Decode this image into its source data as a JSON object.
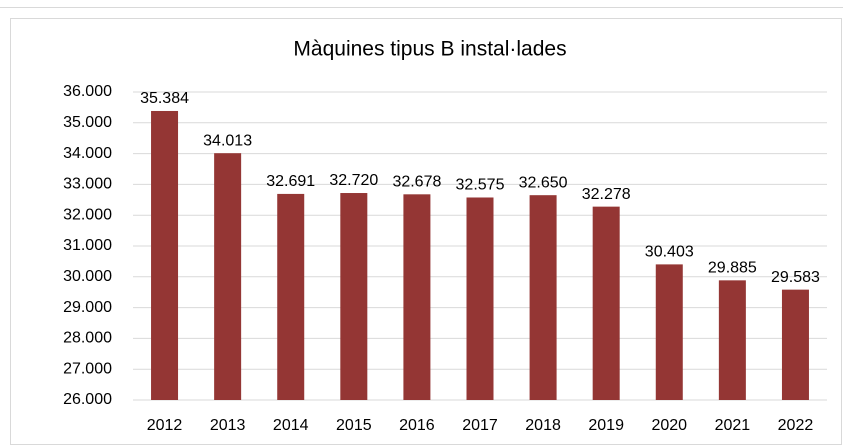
{
  "chart_data": {
    "type": "bar",
    "title": "Màquines tipus B instal·lades",
    "categories": [
      "2012",
      "2013",
      "2014",
      "2015",
      "2016",
      "2017",
      "2018",
      "2019",
      "2020",
      "2021",
      "2022"
    ],
    "values": [
      35384,
      34013,
      32691,
      32720,
      32678,
      32575,
      32650,
      32278,
      30403,
      29885,
      29583
    ],
    "value_labels": [
      "35.384",
      "34.013",
      "32.691",
      "32.720",
      "32.678",
      "32.575",
      "32.650",
      "32.278",
      "30.403",
      "29.885",
      "29.583"
    ],
    "color": "#943634",
    "ylim": [
      26000,
      36000
    ],
    "yticks": [
      {
        "value": 26000,
        "label": "26.000"
      },
      {
        "value": 27000,
        "label": "27.000"
      },
      {
        "value": 28000,
        "label": "28.000"
      },
      {
        "value": 29000,
        "label": "29.000"
      },
      {
        "value": 30000,
        "label": "30.000"
      },
      {
        "value": 31000,
        "label": "31.000"
      },
      {
        "value": 32000,
        "label": "32.000"
      },
      {
        "value": 33000,
        "label": "33.000"
      },
      {
        "value": 34000,
        "label": "34.000"
      },
      {
        "value": 35000,
        "label": "35.000"
      },
      {
        "value": 36000,
        "label": "36.000"
      }
    ],
    "grid": true
  }
}
